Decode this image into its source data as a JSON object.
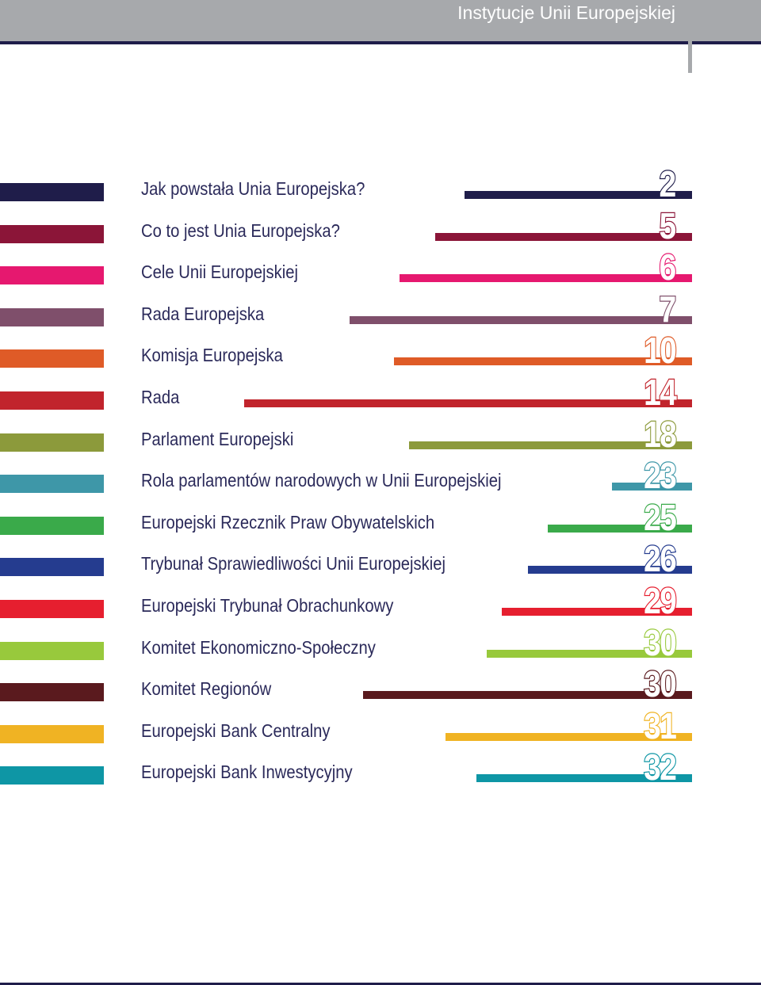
{
  "header": {
    "title": "Instytucje Unii Europejskiej"
  },
  "toc": [
    {
      "label": "Jak powstała Unia Europejska?",
      "page": "2",
      "color": "#1f1d4a",
      "bar_left": 586
    },
    {
      "label": "Co to jest Unia Europejska?",
      "page": "5",
      "color": "#8b1538",
      "bar_left": 549
    },
    {
      "label": "Cele Unii Europejskiej",
      "page": "6",
      "color": "#e6186f",
      "bar_left": 504
    },
    {
      "label": "Rada Europejska",
      "page": "7",
      "color": "#7f4f6b",
      "bar_left": 441
    },
    {
      "label": "Komisja Europejska",
      "page": "10",
      "color": "#df5b27",
      "bar_left": 497
    },
    {
      "label": "Rada",
      "page": "14",
      "color": "#c1242c",
      "bar_left": 308
    },
    {
      "label": "Parlament Europejski",
      "page": "18",
      "color": "#8c9a3b",
      "bar_left": 516
    },
    {
      "label": "Rola parlamentów narodowych w Unii Europejskiej",
      "page": "23",
      "color": "#3e97a8",
      "bar_left": 772
    },
    {
      "label": "Europejski Rzecznik Praw Obywatelskich",
      "page": "25",
      "color": "#3aaa4a",
      "bar_left": 691
    },
    {
      "label": "Trybunał Sprawiedliwości Unii Europejskiej",
      "page": "26",
      "color": "#253c8f",
      "bar_left": 666
    },
    {
      "label": "Europejski Trybunał Obrachunkowy",
      "page": "29",
      "color": "#e61f2f",
      "bar_left": 633
    },
    {
      "label": "Komitet Ekonomiczno-Społeczny",
      "page": "30",
      "color": "#98c93c",
      "bar_left": 614
    },
    {
      "label": "Komitet Regionów",
      "page": "30",
      "color": "#5a1a1e",
      "bar_left": 458
    },
    {
      "label": "Europejski Bank Centralny",
      "page": "31",
      "color": "#f0b323",
      "bar_left": 562
    },
    {
      "label": "Europejski Bank Inwestycyjny",
      "page": "32",
      "color": "#0e96a5",
      "bar_left": 601
    }
  ]
}
